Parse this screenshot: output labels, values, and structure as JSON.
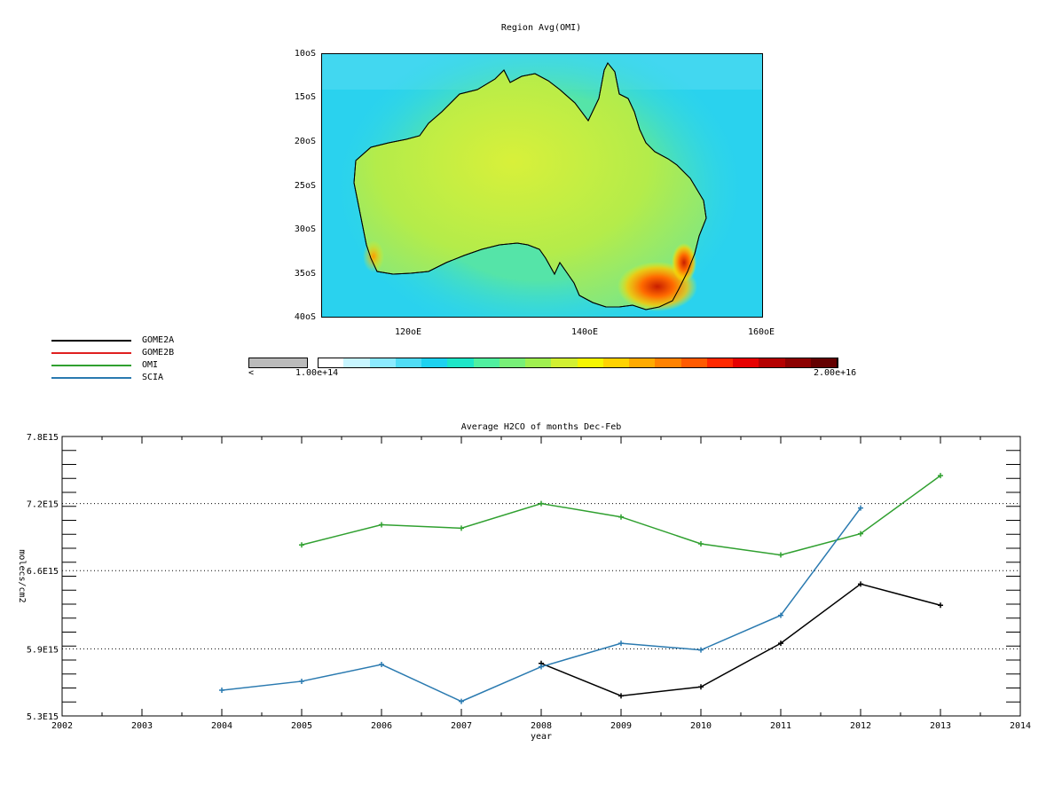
{
  "map": {
    "title": "Region Avg(OMI)",
    "lat_labels": [
      "10oS",
      "15oS",
      "20oS",
      "25oS",
      "30oS",
      "35oS",
      "40oS"
    ],
    "lon_labels": [
      "120oE",
      "140oE",
      "160oE"
    ]
  },
  "colorbar": {
    "under_label": "<",
    "min_label": "1.00e+14",
    "max_label": "2.00e+16",
    "under_color": "#bbbbbb",
    "colors": [
      "#ffffff",
      "#c8f5ff",
      "#8ceaff",
      "#50dcf5",
      "#1ed2f0",
      "#1ee6c8",
      "#50f0a0",
      "#78f078",
      "#a0f050",
      "#d2f032",
      "#f5f500",
      "#ffd200",
      "#ffaa00",
      "#ff8200",
      "#ff5a00",
      "#ff2800",
      "#e60000",
      "#b40000",
      "#8c0000",
      "#640000"
    ]
  },
  "legend": [
    {
      "name": "GOME2A",
      "color": "#000000"
    },
    {
      "name": "GOME2B",
      "color": "#e02020"
    },
    {
      "name": "OMI",
      "color": "#30a030"
    },
    {
      "name": "SCIA",
      "color": "#2a7ab0"
    }
  ],
  "chart_data": {
    "type": "line",
    "title": "Average H2CO of months Dec-Feb",
    "xlabel": "year",
    "ylabel": "molecs/cm2",
    "xlim": [
      2002,
      2014
    ],
    "ylim": [
      5300000000000000.0,
      7800000000000000.0
    ],
    "x_ticks": [
      "2002",
      "2003",
      "2004",
      "2005",
      "2006",
      "2007",
      "2008",
      "2009",
      "2010",
      "2011",
      "2012",
      "2013",
      "2014"
    ],
    "y_ticks": [
      {
        "value": 5300000000000000.0,
        "label": "5.3E15"
      },
      {
        "value": 5900000000000000.0,
        "label": "5.9E15"
      },
      {
        "value": 6600000000000000.0,
        "label": "6.6E15"
      },
      {
        "value": 7200000000000000.0,
        "label": "7.2E15"
      },
      {
        "value": 7800000000000000.0,
        "label": "7.8E15"
      }
    ],
    "grid": "dotted horizontal at labeled y ticks",
    "series": [
      {
        "name": "GOME2A",
        "color": "#000000",
        "x": [
          2008,
          2009,
          2010,
          2011,
          2012,
          2013
        ],
        "y": [
          5770000000000000.0,
          5480000000000000.0,
          5560000000000000.0,
          5950000000000000.0,
          6480000000000000.0,
          6290000000000000.0
        ]
      },
      {
        "name": "GOME2B",
        "color": "#e02020",
        "x": [],
        "y": []
      },
      {
        "name": "OMI",
        "color": "#30a030",
        "x": [
          2005,
          2006,
          2007,
          2008,
          2009,
          2010,
          2011,
          2012,
          2013
        ],
        "y": [
          6830000000000000.0,
          7010000000000000.0,
          6980000000000000.0,
          7200000000000000.0,
          7080000000000000.0,
          6840000000000000.0,
          6740000000000000.0,
          6930000000000000.0,
          7450000000000000.0
        ]
      },
      {
        "name": "SCIA",
        "color": "#2a7ab0",
        "x": [
          2004,
          2005,
          2006,
          2007,
          2008,
          2009,
          2010,
          2011,
          2012
        ],
        "y": [
          5530000000000000.0,
          5610000000000000.0,
          5760000000000000.0,
          5430000000000000.0,
          5740000000000000.0,
          5950000000000000.0,
          5890000000000000.0,
          6200000000000000.0,
          7160000000000000.0
        ]
      }
    ]
  }
}
